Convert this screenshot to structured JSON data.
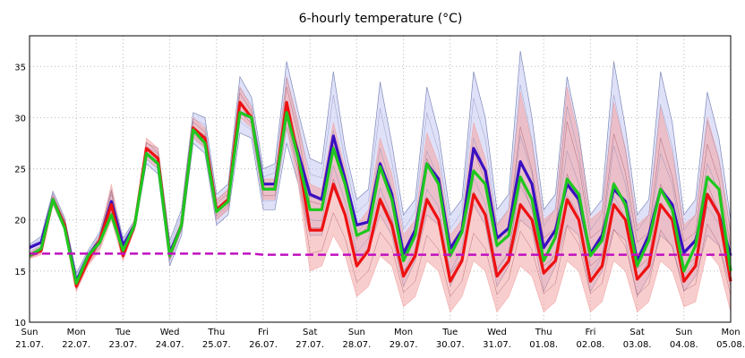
{
  "chart_data": {
    "type": "line",
    "title": "6-hourly temperature (°C)",
    "ylim": [
      10,
      38
    ],
    "yticks": [
      10,
      15,
      20,
      25,
      30,
      35
    ],
    "x_start": "2024-07-21T00:00",
    "x_end": "2024-08-05T00:00",
    "x_step": "6h",
    "xtick_labels": [
      {
        "day": "Sun",
        "date": "21.07."
      },
      {
        "day": "Mon",
        "date": "22.07."
      },
      {
        "day": "Tue",
        "date": "23.07."
      },
      {
        "day": "Wed",
        "date": "24.07."
      },
      {
        "day": "Thu",
        "date": "25.07."
      },
      {
        "day": "Fri",
        "date": "26.07."
      },
      {
        "day": "Sat",
        "date": "27.07."
      },
      {
        "day": "Sun",
        "date": "28.07."
      },
      {
        "day": "Mon",
        "date": "29.07."
      },
      {
        "day": "Tue",
        "date": "30.07."
      },
      {
        "day": "Wed",
        "date": "31.07."
      },
      {
        "day": "Thu",
        "date": "01.08."
      },
      {
        "day": "Fri",
        "date": "02.08."
      },
      {
        "day": "Sat",
        "date": "03.08."
      },
      {
        "day": "Sun",
        "date": "04.08."
      },
      {
        "day": "Mon",
        "date": "05.08."
      }
    ],
    "grid": "dotted",
    "colors": {
      "blue_band": "#b8bcef",
      "blue_members": "#6470a8",
      "blue_mean": "#3a10c0",
      "red_band": "#f2a4a4",
      "red_members": "#8a2a3a",
      "red_mean": "#ee1111",
      "green_mean": "#1ec81e",
      "climate": "#c010c0"
    },
    "series": [
      {
        "role": "blue_mean",
        "values": [
          17.3,
          17.8,
          22.0,
          19.5,
          14.0,
          16.5,
          18.0,
          21.8,
          17.5,
          19.5,
          26.5,
          25.5,
          16.8,
          19.5,
          28.8,
          28.0,
          21.0,
          22.0,
          30.5,
          30.0,
          23.5,
          23.5,
          30.5,
          26.5,
          22.5,
          22.0,
          28.2,
          24.0,
          19.5,
          19.8,
          25.5,
          22.5,
          16.7,
          19.0,
          25.5,
          24.0,
          17.2,
          19.0,
          27.0,
          24.8,
          18.2,
          19.2,
          25.7,
          23.5,
          17.3,
          19.0,
          23.5,
          22.0,
          16.7,
          18.5,
          23.0,
          21.8,
          16.0,
          18.5,
          23.0,
          21.5,
          16.8,
          18.0,
          22.5,
          20.5,
          16.5
        ]
      },
      {
        "role": "green_mean",
        "values": [
          16.5,
          17.2,
          22.0,
          19.2,
          13.8,
          16.5,
          17.8,
          20.5,
          17.0,
          19.5,
          26.5,
          25.5,
          16.5,
          19.5,
          28.8,
          27.5,
          20.8,
          21.8,
          30.5,
          30.0,
          23.0,
          23.0,
          30.5,
          26.0,
          21.0,
          21.0,
          27.0,
          23.5,
          18.5,
          19.0,
          25.2,
          22.0,
          16.0,
          18.5,
          25.5,
          23.5,
          16.5,
          18.8,
          24.8,
          23.5,
          17.5,
          18.5,
          24.2,
          22.0,
          16.0,
          18.3,
          24.0,
          22.5,
          16.5,
          18.0,
          23.5,
          21.5,
          15.5,
          18.0,
          23.0,
          21.0,
          15.0,
          17.5,
          24.2,
          23.0,
          15.0
        ]
      },
      {
        "role": "red_mean",
        "values": [
          16.5,
          17.0,
          22.0,
          19.5,
          13.5,
          16.0,
          18.0,
          21.5,
          16.5,
          19.5,
          27.0,
          26.0,
          16.5,
          19.5,
          29.0,
          28.0,
          21.0,
          22.0,
          31.5,
          30.0,
          23.0,
          23.0,
          31.5,
          26.0,
          19.0,
          19.0,
          23.5,
          20.5,
          15.5,
          17.0,
          22.0,
          19.5,
          14.5,
          16.5,
          22.0,
          20.0,
          14.0,
          16.0,
          22.5,
          20.5,
          14.5,
          16.0,
          21.5,
          20.0,
          14.8,
          16.0,
          22.0,
          20.0,
          14.0,
          15.5,
          21.5,
          20.0,
          14.2,
          15.5,
          21.5,
          20.0,
          14.0,
          15.5,
          22.5,
          20.5,
          14.0
        ]
      },
      {
        "role": "climate",
        "values": [
          16.7,
          16.7,
          16.7,
          16.7,
          16.7,
          16.7,
          16.7,
          16.7,
          16.7,
          16.7,
          16.7,
          16.7,
          16.7,
          16.7,
          16.7,
          16.7,
          16.7,
          16.7,
          16.7,
          16.7,
          16.6,
          16.6,
          16.6,
          16.6,
          16.6,
          16.6,
          16.6,
          16.6,
          16.6,
          16.6,
          16.6,
          16.6,
          16.6,
          16.6,
          16.6,
          16.6,
          16.6,
          16.6,
          16.6,
          16.6,
          16.6,
          16.6,
          16.6,
          16.6,
          16.6,
          16.6,
          16.6,
          16.6,
          16.6,
          16.6,
          16.6,
          16.6,
          16.6,
          16.6,
          16.6,
          16.6,
          16.6,
          16.6,
          16.6,
          16.6,
          16.6
        ]
      }
    ],
    "bands": [
      {
        "role": "blue_band",
        "low": [
          16.8,
          17.2,
          21.5,
          19.0,
          13.5,
          16.0,
          17.5,
          20.5,
          17.0,
          19.0,
          25.5,
          24.5,
          15.5,
          18.5,
          27.5,
          26.5,
          19.5,
          20.5,
          28.5,
          28.0,
          21.0,
          21.0,
          27.5,
          23.5,
          18.5,
          18.5,
          23.0,
          20.5,
          15.5,
          17.0,
          20.5,
          18.5,
          13.5,
          16.0,
          20.5,
          19.5,
          13.5,
          16.0,
          21.5,
          19.5,
          13.5,
          15.5,
          20.0,
          19.0,
          13.0,
          15.5,
          19.5,
          18.5,
          13.0,
          15.0,
          19.0,
          18.0,
          12.5,
          14.5,
          18.5,
          17.5,
          13.0,
          14.5,
          18.5,
          17.5,
          13.5
        ],
        "high": [
          17.6,
          18.4,
          22.8,
          20.2,
          14.8,
          17.0,
          18.8,
          23.0,
          18.2,
          20.0,
          27.5,
          27.0,
          18.0,
          21.0,
          30.5,
          30.0,
          22.5,
          23.5,
          34.0,
          32.0,
          25.0,
          25.5,
          35.5,
          30.5,
          26.0,
          25.5,
          34.5,
          27.0,
          22.0,
          23.0,
          33.5,
          27.5,
          20.5,
          22.0,
          33.0,
          28.5,
          20.5,
          22.0,
          34.5,
          30.0,
          21.0,
          22.5,
          36.5,
          30.0,
          21.0,
          22.5,
          34.0,
          28.5,
          20.5,
          22.0,
          35.5,
          29.0,
          20.5,
          22.0,
          34.5,
          29.5,
          20.5,
          22.0,
          32.5,
          28.0,
          20.0
        ]
      },
      {
        "role": "red_band",
        "low": [
          16.2,
          16.6,
          21.5,
          19.0,
          13.0,
          15.5,
          17.0,
          20.0,
          16.0,
          19.0,
          26.0,
          25.0,
          16.0,
          19.0,
          28.0,
          27.0,
          20.0,
          21.0,
          30.0,
          29.0,
          22.0,
          22.0,
          29.0,
          23.5,
          15.0,
          15.5,
          18.5,
          16.5,
          12.5,
          13.5,
          16.5,
          15.5,
          11.5,
          12.5,
          16.0,
          15.0,
          11.0,
          12.5,
          16.0,
          15.0,
          11.0,
          12.5,
          15.5,
          14.5,
          11.0,
          12.0,
          16.0,
          15.0,
          11.0,
          12.0,
          16.0,
          15.0,
          11.0,
          12.0,
          16.0,
          15.0,
          11.5,
          12.0,
          17.0,
          15.5,
          11.0
        ],
        "high": [
          16.8,
          17.5,
          22.5,
          20.0,
          14.0,
          16.5,
          18.5,
          23.5,
          17.5,
          20.0,
          28.0,
          27.0,
          17.0,
          20.0,
          30.0,
          29.0,
          22.0,
          23.0,
          33.0,
          31.0,
          24.0,
          24.0,
          34.0,
          29.5,
          23.5,
          23.0,
          29.5,
          25.0,
          19.5,
          21.0,
          28.0,
          24.5,
          18.5,
          20.0,
          28.5,
          25.5,
          18.5,
          20.0,
          29.5,
          26.0,
          19.5,
          21.0,
          32.5,
          27.5,
          20.0,
          21.0,
          33.0,
          28.0,
          20.0,
          21.0,
          31.5,
          27.0,
          19.5,
          20.5,
          31.0,
          26.5,
          19.5,
          20.5,
          30.0,
          26.0,
          19.0
        ]
      }
    ]
  }
}
